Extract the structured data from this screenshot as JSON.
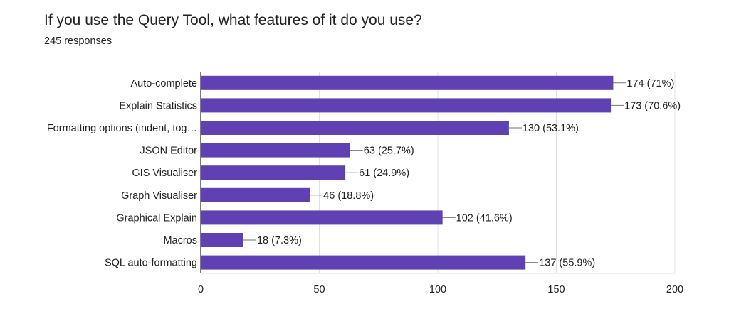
{
  "title": "If you use the Query Tool, what features of it do you use?",
  "subtitle": "245 responses",
  "chart_data": {
    "type": "bar",
    "orientation": "horizontal",
    "title": "If you use the Query Tool, what features of it do you use?",
    "subtitle": "245 responses",
    "categories": [
      "Auto-complete",
      "Explain Statistics",
      "Formatting options (indent, tog…",
      "JSON Editor",
      "GIS Visualiser",
      "Graph Visualiser",
      "Graphical Explain",
      "Macros",
      "SQL auto-formatting"
    ],
    "values": [
      174,
      173,
      130,
      63,
      61,
      46,
      102,
      18,
      137
    ],
    "value_labels": [
      "174 (71%)",
      "173 (70.6%)",
      "130 (53.1%)",
      "63 (25.7%)",
      "61 (24.9%)",
      "46 (18.8%)",
      "102 (41.6%)",
      "18 (7.3%)",
      "137 (55.9%)"
    ],
    "xlim": [
      0,
      200
    ],
    "xticks": [
      0,
      50,
      100,
      150,
      200
    ],
    "xlabel": "",
    "ylabel": "",
    "grid": true,
    "bar_color": "#6041b3"
  }
}
